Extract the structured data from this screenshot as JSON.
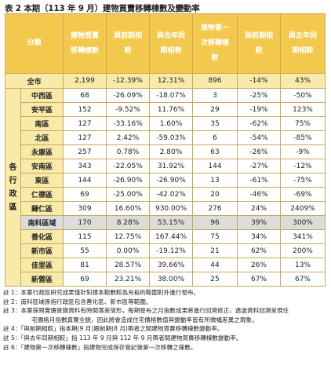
{
  "title": "表 2 本期（113 年 9 月）建物買賣移轉棟數及變動率",
  "headers": {
    "category": "分類",
    "count": [
      "建物買賣",
      "移轉棟數"
    ],
    "mom": [
      "與前期相",
      "較"
    ],
    "yoy": [
      "與去年同",
      "期相較"
    ],
    "first_count": [
      "建物第一",
      "次移轉棟",
      "數"
    ],
    "first_mom": [
      "與前期相",
      "較"
    ],
    "first_yoy": [
      "與去年同",
      "期相較"
    ]
  },
  "city": {
    "name": "全市",
    "count": "2,199",
    "mom": "-12.39%",
    "yoy": "12.31%",
    "first_count": "896",
    "first_mom": "-14%",
    "first_yoy": "43%"
  },
  "group_label": "各行政區",
  "districts": [
    {
      "name": "中西區",
      "count": "68",
      "mom": "-26.09%",
      "yoy": "-18.07%",
      "first_count": "3",
      "first_mom": "-25%",
      "first_yoy": "-50%"
    },
    {
      "name": "安平區",
      "count": "152",
      "mom": "-9.52%",
      "yoy": "11.76%",
      "first_count": "29",
      "first_mom": "-19%",
      "first_yoy": "123%"
    },
    {
      "name": "南區",
      "count": "127",
      "mom": "-33.16%",
      "yoy": "1.60%",
      "first_count": "35",
      "first_mom": "-62%",
      "first_yoy": "75%"
    },
    {
      "name": "北區",
      "count": "127",
      "mom": "2.42%",
      "yoy": "-59.03%",
      "first_count": "6",
      "first_mom": "-54%",
      "first_yoy": "-85%"
    },
    {
      "name": "永康區",
      "count": "257",
      "mom": "0.78%",
      "yoy": "2.80%",
      "first_count": "63",
      "first_mom": "-26%",
      "first_yoy": "-9%"
    },
    {
      "name": "安南區",
      "count": "343",
      "mom": "-22.05%",
      "yoy": "31.92%",
      "first_count": "144",
      "first_mom": "-27%",
      "first_yoy": "-12%"
    },
    {
      "name": "東區",
      "count": "144",
      "mom": "-26.90%",
      "yoy": "-26.90%",
      "first_count": "13",
      "first_mom": "-61%",
      "first_yoy": "-75%"
    },
    {
      "name": "仁德區",
      "count": "69",
      "mom": "-25.00%",
      "yoy": "-42.02%",
      "first_count": "20",
      "first_mom": "-46%",
      "first_yoy": "-69%"
    },
    {
      "name": "歸仁區",
      "count": "309",
      "mom": "16.60%",
      "yoy": "930.00%",
      "first_count": "276",
      "first_mom": "24%",
      "first_yoy": "2409%"
    }
  ],
  "special": {
    "name": "南科區域",
    "count": "170",
    "mom": "8.28%",
    "yoy": "53.15%",
    "first_count": "96",
    "first_mom": "39%",
    "first_yoy": "300%"
  },
  "districts2": [
    {
      "name": "善化區",
      "count": "115",
      "mom": "12.75%",
      "yoy": "167.44%",
      "first_count": "75",
      "first_mom": "34%",
      "first_yoy": "341%"
    },
    {
      "name": "新市區",
      "count": "55",
      "mom": "0.00%",
      "yoy": "-19.12%",
      "first_count": "21",
      "first_mom": "62%",
      "first_yoy": "200%"
    },
    {
      "name": "佳里區",
      "count": "81",
      "mom": "28.57%",
      "yoy": "39.66%",
      "first_count": "44",
      "first_mom": "26%",
      "first_yoy": "13%"
    },
    {
      "name": "新營區",
      "count": "69",
      "mom": "23.21%",
      "yoy": "38.00%",
      "first_count": "25",
      "first_mom": "67%",
      "first_yoy": "67%"
    }
  ],
  "notes": [
    "註 1：本案行政區研究成果僅針對樣本範數較為充裕的範圍對外進行發布。",
    "註 2：南科區域係指行政區包含善化區、新市區等範圍。",
    "註 3：本案採限實價登錄資料有時間落差情形，每期發布之月指數成果將進行回溯修正，透過資料回溯呈現住",
    "宅價格月指數真實全貌，因此將會造成住宅價格數值與變動率皆有所微幅差異之現象。",
    "註 4：「與前期相較」指本期(9 月)跟前期(8 月)兩者之間建物買賣移轉棟數變動率。",
    "註 5：「與去年同期相較」指 113 年 9 月與 112 年 9 月兩者間建物買賣移轉棟數變動率。",
    "註 6：「建物第一次移轉棟數」指建物完成保存登記後第一次移轉之棟數。"
  ]
}
